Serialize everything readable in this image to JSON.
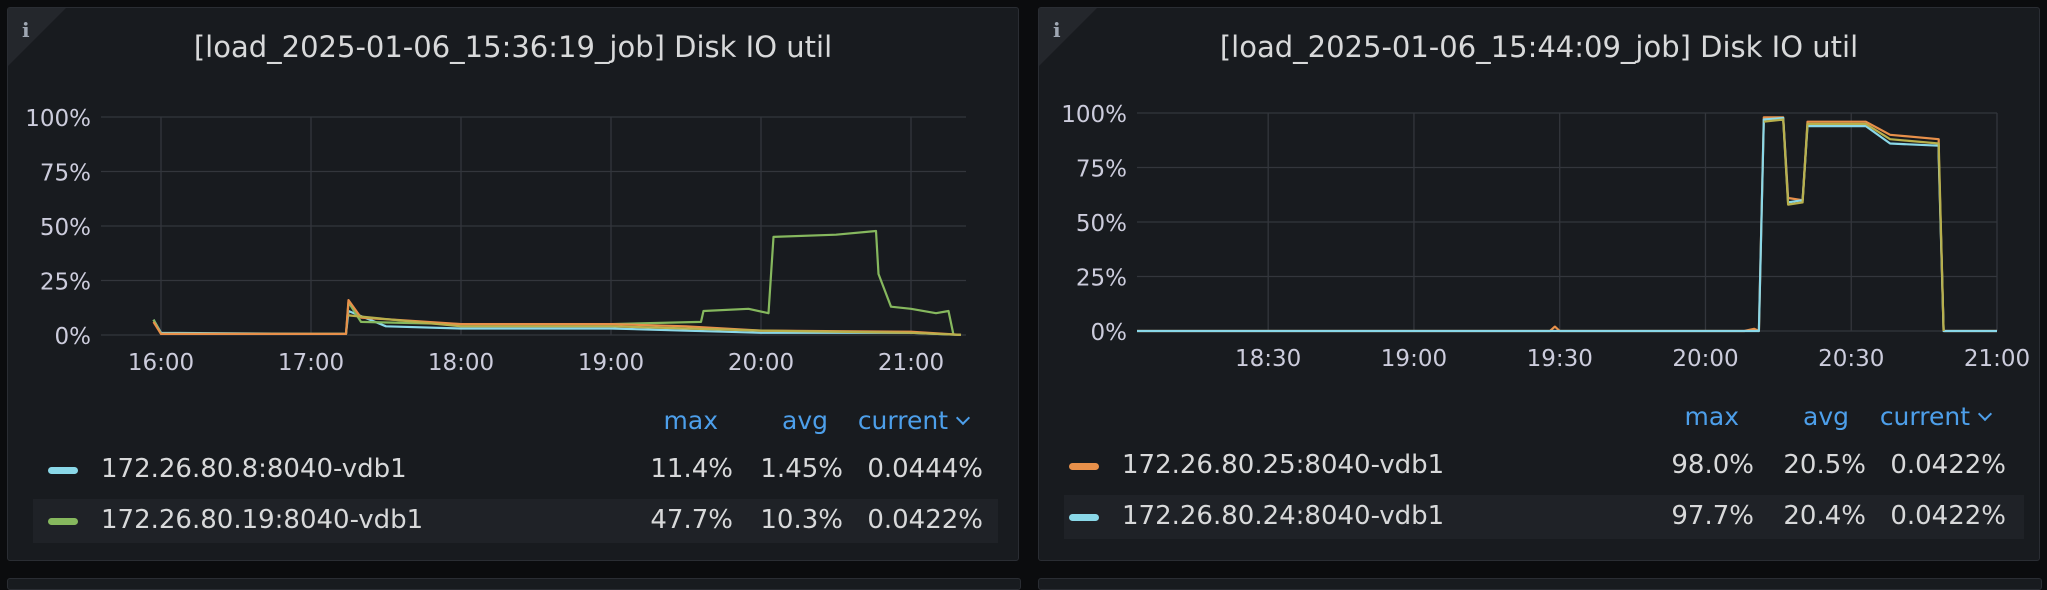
{
  "panels": [
    {
      "title": "[load_2025-01-06_15:36:19_job] Disk IO util",
      "legend_headers": {
        "max": "max",
        "avg": "avg",
        "current": "current"
      },
      "legend": [
        {
          "name": "172.26.80.8:8040-vdb1",
          "max": "11.4%",
          "avg": "1.45%",
          "current": "0.0444%"
        },
        {
          "name": "172.26.80.19:8040-vdb1",
          "max": "47.7%",
          "avg": "10.3%",
          "current": "0.0422%"
        }
      ]
    },
    {
      "title": "[load_2025-01-06_15:44:09_job] Disk IO util",
      "legend_headers": {
        "max": "max",
        "avg": "avg",
        "current": "current"
      },
      "legend": [
        {
          "name": "172.26.80.25:8040-vdb1",
          "max": "98.0%",
          "avg": "20.5%",
          "current": "0.0422%"
        },
        {
          "name": "172.26.80.24:8040-vdb1",
          "max": "97.7%",
          "avg": "20.4%",
          "current": "0.0422%"
        }
      ]
    }
  ],
  "chart_data": [
    {
      "type": "line",
      "title": "[load_2025-01-06_15:36:19_job] Disk IO util",
      "x_range": [
        "15:36",
        "21:22"
      ],
      "x_ticks": [
        "16:00",
        "17:00",
        "18:00",
        "19:00",
        "20:00",
        "21:00"
      ],
      "y_ticks": [
        "0%",
        "25%",
        "50%",
        "75%",
        "100%"
      ],
      "ylim": [
        0,
        100
      ],
      "grid": true,
      "series": [
        {
          "name": "172.26.80.8:8040-vdb1",
          "color": "#8ad8e8",
          "points": [
            [
              "15:57",
              7
            ],
            [
              "16:00",
              1
            ],
            [
              "17:00",
              0.5
            ],
            [
              "17:14",
              0.5
            ],
            [
              "17:15",
              11
            ],
            [
              "17:30",
              4
            ],
            [
              "18:00",
              3
            ],
            [
              "18:30",
              3
            ],
            [
              "19:00",
              3
            ],
            [
              "19:30",
              2
            ],
            [
              "19:45",
              1.5
            ],
            [
              "20:00",
              1
            ],
            [
              "21:00",
              1
            ],
            [
              "21:20",
              0.04
            ]
          ]
        },
        {
          "name": "172.26.80.19:8040-vdb1",
          "color": "#86b85e",
          "points": [
            [
              "15:57",
              7
            ],
            [
              "16:00",
              0.5
            ],
            [
              "17:14",
              0.5
            ],
            [
              "17:15",
              15
            ],
            [
              "17:20",
              6
            ],
            [
              "18:00",
              5
            ],
            [
              "19:00",
              5
            ],
            [
              "19:36",
              6
            ],
            [
              "19:37",
              11
            ],
            [
              "19:55",
              12
            ],
            [
              "20:03",
              10
            ],
            [
              "20:05",
              45
            ],
            [
              "20:30",
              46
            ],
            [
              "20:46",
              47.7
            ],
            [
              "20:47",
              28
            ],
            [
              "20:52",
              13
            ],
            [
              "21:00",
              12
            ],
            [
              "21:10",
              10
            ],
            [
              "21:15",
              11
            ],
            [
              "21:17",
              0.04
            ]
          ]
        },
        {
          "name": "",
          "color": "#e8904a",
          "points": [
            [
              "15:57",
              6
            ],
            [
              "16:00",
              0.5
            ],
            [
              "17:14",
              0.5
            ],
            [
              "17:15",
              16
            ],
            [
              "17:20",
              8
            ],
            [
              "18:00",
              5
            ],
            [
              "19:00",
              5
            ],
            [
              "19:30",
              4
            ],
            [
              "20:00",
              2
            ],
            [
              "21:00",
              1.5
            ],
            [
              "21:20",
              0.04
            ]
          ]
        },
        {
          "name": "",
          "color": "#b8b04c",
          "points": [
            [
              "17:15",
              9
            ],
            [
              "18:00",
              4
            ],
            [
              "19:00",
              4
            ],
            [
              "20:00",
              2
            ],
            [
              "21:00",
              1
            ],
            [
              "21:20",
              0.04
            ]
          ]
        }
      ]
    },
    {
      "type": "line",
      "title": "[load_2025-01-06_15:44:09_job] Disk IO util",
      "x_range": [
        "18:03",
        "21:00"
      ],
      "x_ticks": [
        "18:30",
        "19:00",
        "19:30",
        "20:00",
        "20:30",
        "21:00"
      ],
      "y_ticks": [
        "0%",
        "25%",
        "50%",
        "75%",
        "100%"
      ],
      "ylim": [
        0,
        100
      ],
      "grid": true,
      "series": [
        {
          "name": "172.26.80.25:8040-vdb1",
          "color": "#e8904a",
          "points": [
            [
              "18:03",
              0
            ],
            [
              "19:28",
              0
            ],
            [
              "19:29",
              2
            ],
            [
              "19:30",
              0
            ],
            [
              "20:08",
              0
            ],
            [
              "20:10",
              1
            ],
            [
              "20:11",
              0
            ],
            [
              "20:12",
              98
            ],
            [
              "20:16",
              98
            ],
            [
              "20:17",
              61
            ],
            [
              "20:20",
              60
            ],
            [
              "20:21",
              96
            ],
            [
              "20:33",
              96
            ],
            [
              "20:38",
              90
            ],
            [
              "20:48",
              88
            ],
            [
              "20:48",
              82
            ],
            [
              "20:49",
              0
            ],
            [
              "21:00",
              0
            ]
          ]
        },
        {
          "name": "172.26.80.24:8040-vdb1",
          "color": "#8ad8e8",
          "points": [
            [
              "18:03",
              0
            ],
            [
              "20:11",
              0
            ],
            [
              "20:12",
              97
            ],
            [
              "20:16",
              97.7
            ],
            [
              "20:17",
              59
            ],
            [
              "20:20",
              60
            ],
            [
              "20:21",
              94
            ],
            [
              "20:33",
              94
            ],
            [
              "20:38",
              86
            ],
            [
              "20:48",
              85
            ],
            [
              "20:48",
              80
            ],
            [
              "20:49",
              0
            ],
            [
              "21:00",
              0
            ]
          ]
        },
        {
          "name": "",
          "color": "#b8b04c",
          "points": [
            [
              "20:12",
              96
            ],
            [
              "20:16",
              97
            ],
            [
              "20:17",
              58
            ],
            [
              "20:20",
              59
            ],
            [
              "20:21",
              95
            ],
            [
              "20:33",
              95
            ],
            [
              "20:38",
              88
            ],
            [
              "20:48",
              86
            ],
            [
              "20:49",
              0
            ]
          ]
        }
      ]
    }
  ]
}
